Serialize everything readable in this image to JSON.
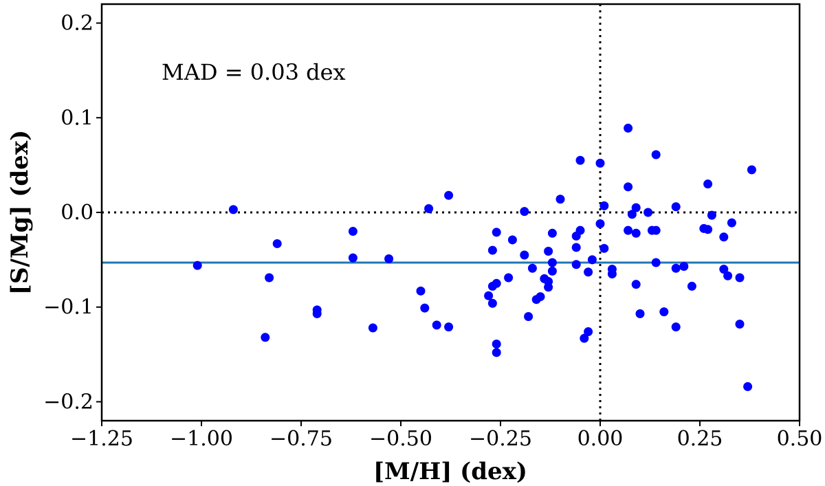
{
  "chart_data": {
    "type": "scatter",
    "title": "",
    "xlabel": "[M/H] (dex)",
    "ylabel": "[S/Mg] (dex)",
    "xlim": [
      -1.25,
      0.5
    ],
    "ylim": [
      -0.22,
      0.22
    ],
    "xticks": [
      -1.25,
      -1.0,
      -0.75,
      -0.5,
      -0.25,
      0.0,
      0.25,
      0.5
    ],
    "xtick_labels": [
      "−1.25",
      "−1.00",
      "−0.75",
      "−0.50",
      "−0.25",
      "0.00",
      "0.25",
      "0.50"
    ],
    "yticks": [
      -0.2,
      -0.1,
      0.0,
      0.1,
      0.2
    ],
    "ytick_labels": [
      "−0.2",
      "−0.1",
      "0.0",
      "0.1",
      "0.2"
    ],
    "annotation": "MAD = 0.03 dex",
    "mean_line": {
      "y": -0.053,
      "color": "#1f77b4"
    },
    "reference_lines": {
      "x": 0.0,
      "y": 0.0,
      "style": "dotted",
      "color": "#000000"
    },
    "marker_color": "#0000ff",
    "points": [
      {
        "x": -1.01,
        "y": -0.056
      },
      {
        "x": -0.92,
        "y": 0.003
      },
      {
        "x": -0.84,
        "y": -0.132
      },
      {
        "x": -0.83,
        "y": -0.069
      },
      {
        "x": -0.81,
        "y": -0.033
      },
      {
        "x": -0.71,
        "y": -0.103
      },
      {
        "x": -0.71,
        "y": -0.107
      },
      {
        "x": -0.62,
        "y": -0.02
      },
      {
        "x": -0.62,
        "y": -0.048
      },
      {
        "x": -0.57,
        "y": -0.122
      },
      {
        "x": -0.53,
        "y": -0.049
      },
      {
        "x": -0.45,
        "y": -0.083
      },
      {
        "x": -0.44,
        "y": -0.101
      },
      {
        "x": -0.43,
        "y": 0.004
      },
      {
        "x": -0.41,
        "y": -0.119
      },
      {
        "x": -0.38,
        "y": 0.018
      },
      {
        "x": -0.38,
        "y": -0.121
      },
      {
        "x": -0.28,
        "y": -0.088
      },
      {
        "x": -0.27,
        "y": -0.04
      },
      {
        "x": -0.27,
        "y": -0.078
      },
      {
        "x": -0.27,
        "y": -0.096
      },
      {
        "x": -0.26,
        "y": -0.021
      },
      {
        "x": -0.26,
        "y": -0.075
      },
      {
        "x": -0.26,
        "y": -0.139
      },
      {
        "x": -0.26,
        "y": -0.148
      },
      {
        "x": -0.23,
        "y": -0.069
      },
      {
        "x": -0.22,
        "y": -0.029
      },
      {
        "x": -0.19,
        "y": 0.001
      },
      {
        "x": -0.19,
        "y": -0.045
      },
      {
        "x": -0.18,
        "y": -0.11
      },
      {
        "x": -0.17,
        "y": -0.059
      },
      {
        "x": -0.16,
        "y": -0.092
      },
      {
        "x": -0.15,
        "y": -0.089
      },
      {
        "x": -0.14,
        "y": -0.07
      },
      {
        "x": -0.13,
        "y": -0.041
      },
      {
        "x": -0.13,
        "y": -0.073
      },
      {
        "x": -0.13,
        "y": -0.079
      },
      {
        "x": -0.12,
        "y": -0.022
      },
      {
        "x": -0.12,
        "y": -0.053
      },
      {
        "x": -0.12,
        "y": -0.062
      },
      {
        "x": -0.1,
        "y": 0.014
      },
      {
        "x": -0.06,
        "y": -0.025
      },
      {
        "x": -0.06,
        "y": -0.037
      },
      {
        "x": -0.06,
        "y": -0.055
      },
      {
        "x": -0.05,
        "y": 0.055
      },
      {
        "x": -0.05,
        "y": -0.019
      },
      {
        "x": -0.04,
        "y": -0.133
      },
      {
        "x": -0.03,
        "y": -0.063
      },
      {
        "x": -0.03,
        "y": -0.126
      },
      {
        "x": -0.02,
        "y": -0.05
      },
      {
        "x": 0.0,
        "y": 0.052
      },
      {
        "x": 0.0,
        "y": -0.012
      },
      {
        "x": 0.01,
        "y": 0.007
      },
      {
        "x": 0.01,
        "y": -0.038
      },
      {
        "x": 0.03,
        "y": -0.06
      },
      {
        "x": 0.03,
        "y": -0.065
      },
      {
        "x": 0.07,
        "y": 0.089
      },
      {
        "x": 0.07,
        "y": 0.027
      },
      {
        "x": 0.07,
        "y": -0.019
      },
      {
        "x": 0.08,
        "y": -0.002
      },
      {
        "x": 0.09,
        "y": 0.005
      },
      {
        "x": 0.09,
        "y": -0.022
      },
      {
        "x": 0.09,
        "y": -0.076
      },
      {
        "x": 0.1,
        "y": -0.107
      },
      {
        "x": 0.12,
        "y": 0.0
      },
      {
        "x": 0.13,
        "y": -0.019
      },
      {
        "x": 0.14,
        "y": 0.061
      },
      {
        "x": 0.14,
        "y": -0.019
      },
      {
        "x": 0.14,
        "y": -0.053
      },
      {
        "x": 0.16,
        "y": -0.105
      },
      {
        "x": 0.19,
        "y": 0.006
      },
      {
        "x": 0.19,
        "y": -0.059
      },
      {
        "x": 0.19,
        "y": -0.121
      },
      {
        "x": 0.21,
        "y": -0.057
      },
      {
        "x": 0.23,
        "y": -0.078
      },
      {
        "x": 0.26,
        "y": -0.017
      },
      {
        "x": 0.27,
        "y": 0.03
      },
      {
        "x": 0.27,
        "y": -0.018
      },
      {
        "x": 0.28,
        "y": -0.003
      },
      {
        "x": 0.31,
        "y": -0.026
      },
      {
        "x": 0.31,
        "y": -0.06
      },
      {
        "x": 0.32,
        "y": -0.067
      },
      {
        "x": 0.33,
        "y": -0.011
      },
      {
        "x": 0.35,
        "y": -0.069
      },
      {
        "x": 0.35,
        "y": -0.118
      },
      {
        "x": 0.37,
        "y": -0.184
      },
      {
        "x": 0.38,
        "y": 0.045
      }
    ]
  }
}
